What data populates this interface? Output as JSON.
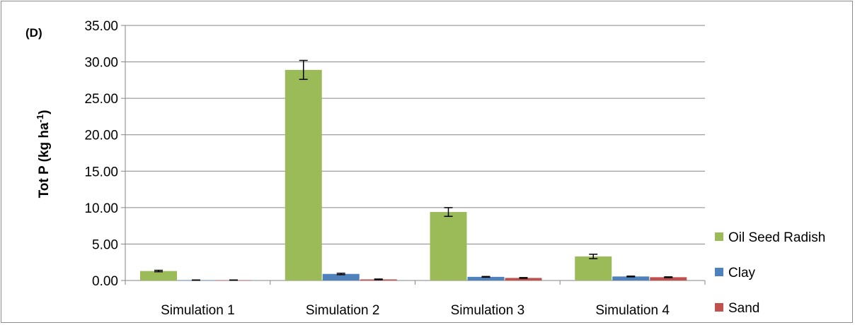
{
  "chart_data": {
    "type": "bar",
    "panel_label": "(D)",
    "ylabel_main": "Tot P (kg ha",
    "ylabel_sup": "-1",
    "ylabel_close": ")",
    "ylim": [
      0,
      35
    ],
    "ytick_step": 5,
    "ytick_labels": [
      "0.00",
      "5.00",
      "10.00",
      "15.00",
      "20.00",
      "25.00",
      "30.00",
      "35.00"
    ],
    "grid": true,
    "legend_position": "right",
    "categories": [
      "Simulation 1",
      "Simulation 2",
      "Simulation 3",
      "Simulation 4"
    ],
    "series": [
      {
        "name": "Oil Seed Radish",
        "color": "#9bbb59",
        "values": [
          1.3,
          28.9,
          9.4,
          3.3
        ],
        "errors": [
          0.1,
          1.3,
          0.6,
          0.3
        ]
      },
      {
        "name": "Clay",
        "color": "#4f81bd",
        "values": [
          0.05,
          0.9,
          0.5,
          0.55
        ],
        "errors": [
          0.02,
          0.1,
          0.05,
          0.05
        ]
      },
      {
        "name": "Sand",
        "color": "#c0504d",
        "values": [
          0.05,
          0.15,
          0.35,
          0.45
        ],
        "errors": [
          0.02,
          0.05,
          0.05,
          0.05
        ]
      }
    ]
  }
}
